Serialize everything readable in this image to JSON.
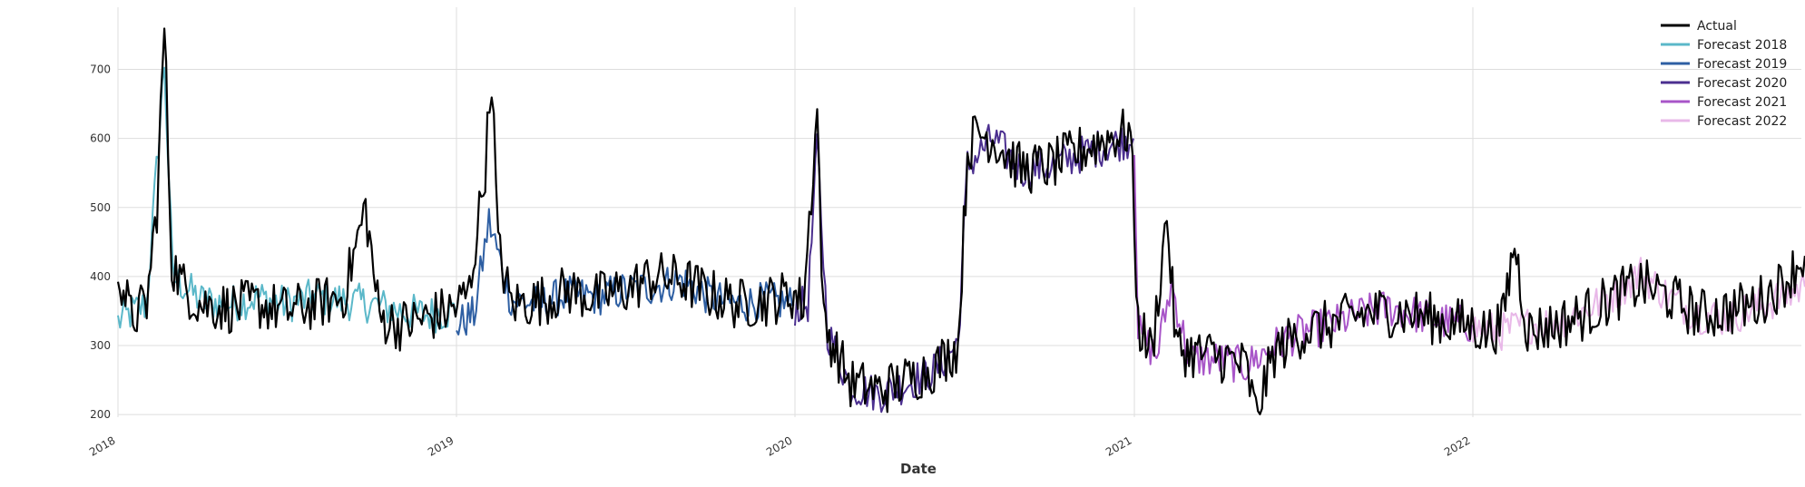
{
  "chart_data": {
    "type": "line",
    "title": "",
    "xlabel": "Date",
    "ylabel": "",
    "x_type": "date",
    "xlim": [
      "2018-01-01",
      "2022-12-31"
    ],
    "ylim": [
      170,
      790
    ],
    "yticks": [
      200,
      300,
      400,
      500,
      600,
      700
    ],
    "xticks": [
      {
        "date": "2018-01-01",
        "label": "2018"
      },
      {
        "date": "2019-01-01",
        "label": "2019"
      },
      {
        "date": "2020-01-01",
        "label": "2020"
      },
      {
        "date": "2021-01-01",
        "label": "2021"
      },
      {
        "date": "2022-01-01",
        "label": "2022"
      }
    ],
    "grid": true,
    "legend_position": "top-right",
    "series": [
      {
        "name": "Actual",
        "color": "#000000",
        "points": [
          [
            "2018-01-01",
            415
          ],
          [
            "2018-01-15",
            340
          ],
          [
            "2018-02-01",
            360
          ],
          [
            "2018-02-12",
            500
          ],
          [
            "2018-02-20",
            765
          ],
          [
            "2018-02-28",
            420
          ],
          [
            "2018-03-15",
            380
          ],
          [
            "2018-04-01",
            360
          ],
          [
            "2018-05-01",
            355
          ],
          [
            "2018-06-01",
            360
          ],
          [
            "2018-07-01",
            350
          ],
          [
            "2018-08-01",
            360
          ],
          [
            "2018-09-01",
            370
          ],
          [
            "2018-09-25",
            500
          ],
          [
            "2018-10-10",
            340
          ],
          [
            "2018-11-01",
            330
          ],
          [
            "2018-12-01",
            340
          ],
          [
            "2018-12-31",
            355
          ],
          [
            "2019-01-15",
            380
          ],
          [
            "2019-02-01",
            560
          ],
          [
            "2019-02-08",
            695
          ],
          [
            "2019-02-15",
            440
          ],
          [
            "2019-03-01",
            360
          ],
          [
            "2019-04-01",
            365
          ],
          [
            "2019-05-01",
            380
          ],
          [
            "2019-06-01",
            370
          ],
          [
            "2019-07-01",
            380
          ],
          [
            "2019-08-01",
            400
          ],
          [
            "2019-09-01",
            395
          ],
          [
            "2019-10-01",
            375
          ],
          [
            "2019-11-01",
            360
          ],
          [
            "2019-12-01",
            365
          ],
          [
            "2019-12-31",
            375
          ],
          [
            "2020-01-10",
            360
          ],
          [
            "2020-01-25",
            640
          ],
          [
            "2020-02-01",
            330
          ],
          [
            "2020-02-15",
            290
          ],
          [
            "2020-03-01",
            245
          ],
          [
            "2020-04-01",
            235
          ],
          [
            "2020-05-01",
            250
          ],
          [
            "2020-06-01",
            270
          ],
          [
            "2020-06-25",
            300
          ],
          [
            "2020-07-05",
            580
          ],
          [
            "2020-07-15",
            610
          ],
          [
            "2020-08-01",
            600
          ],
          [
            "2020-09-01",
            555
          ],
          [
            "2020-10-01",
            560
          ],
          [
            "2020-11-01",
            580
          ],
          [
            "2020-12-01",
            600
          ],
          [
            "2020-12-28",
            610
          ],
          [
            "2021-01-05",
            330
          ],
          [
            "2021-01-20",
            290
          ],
          [
            "2021-02-05",
            490
          ],
          [
            "2021-02-15",
            300
          ],
          [
            "2021-03-01",
            290
          ],
          [
            "2021-04-01",
            285
          ],
          [
            "2021-05-01",
            270
          ],
          [
            "2021-05-12",
            200
          ],
          [
            "2021-06-01",
            290
          ],
          [
            "2021-07-01",
            320
          ],
          [
            "2021-08-01",
            330
          ],
          [
            "2021-09-01",
            345
          ],
          [
            "2021-10-01",
            350
          ],
          [
            "2021-11-01",
            345
          ],
          [
            "2021-12-01",
            335
          ],
          [
            "2021-12-31",
            330
          ],
          [
            "2022-01-15",
            320
          ],
          [
            "2022-02-01",
            330
          ],
          [
            "2022-02-15",
            450
          ],
          [
            "2022-03-01",
            320
          ],
          [
            "2022-04-01",
            330
          ],
          [
            "2022-05-01",
            345
          ],
          [
            "2022-06-01",
            370
          ],
          [
            "2022-07-01",
            390
          ],
          [
            "2022-08-01",
            370
          ],
          [
            "2022-09-01",
            345
          ],
          [
            "2022-10-01",
            350
          ],
          [
            "2022-11-01",
            360
          ],
          [
            "2022-12-01",
            390
          ],
          [
            "2022-12-25",
            430
          ]
        ]
      },
      {
        "name": "Forecast 2018",
        "color": "#5bb8c9",
        "points": [
          [
            "2018-01-01",
            335
          ],
          [
            "2018-02-01",
            360
          ],
          [
            "2018-02-20",
            710
          ],
          [
            "2018-03-01",
            400
          ],
          [
            "2018-04-01",
            365
          ],
          [
            "2018-05-01",
            360
          ],
          [
            "2018-06-01",
            370
          ],
          [
            "2018-07-01",
            360
          ],
          [
            "2018-08-01",
            370
          ],
          [
            "2018-09-01",
            365
          ],
          [
            "2018-10-01",
            360
          ],
          [
            "2018-11-01",
            350
          ],
          [
            "2018-12-01",
            345
          ],
          [
            "2018-12-31",
            350
          ]
        ]
      },
      {
        "name": "Forecast 2019",
        "color": "#2e5fa3",
        "points": [
          [
            "2019-01-01",
            330
          ],
          [
            "2019-01-20",
            345
          ],
          [
            "2019-02-05",
            480
          ],
          [
            "2019-03-01",
            365
          ],
          [
            "2019-04-01",
            360
          ],
          [
            "2019-05-01",
            375
          ],
          [
            "2019-06-01",
            370
          ],
          [
            "2019-07-01",
            380
          ],
          [
            "2019-08-01",
            385
          ],
          [
            "2019-09-01",
            395
          ],
          [
            "2019-10-01",
            370
          ],
          [
            "2019-11-01",
            360
          ],
          [
            "2019-12-01",
            365
          ],
          [
            "2019-12-31",
            360
          ]
        ]
      },
      {
        "name": "Forecast 2020",
        "color": "#4b2f8f",
        "points": [
          [
            "2020-01-01",
            355
          ],
          [
            "2020-01-15",
            360
          ],
          [
            "2020-01-25",
            590
          ],
          [
            "2020-02-05",
            320
          ],
          [
            "2020-03-01",
            240
          ],
          [
            "2020-04-01",
            230
          ],
          [
            "2020-05-01",
            245
          ],
          [
            "2020-06-01",
            265
          ],
          [
            "2020-06-25",
            305
          ],
          [
            "2020-07-05",
            560
          ],
          [
            "2020-08-01",
            600
          ],
          [
            "2020-09-01",
            555
          ],
          [
            "2020-10-01",
            560
          ],
          [
            "2020-11-01",
            575
          ],
          [
            "2020-12-01",
            590
          ],
          [
            "2020-12-31",
            600
          ]
        ]
      },
      {
        "name": "Forecast 2021",
        "color": "#a855c8",
        "points": [
          [
            "2021-01-01",
            600
          ],
          [
            "2021-01-05",
            320
          ],
          [
            "2021-01-25",
            285
          ],
          [
            "2021-02-10",
            390
          ],
          [
            "2021-03-01",
            280
          ],
          [
            "2021-04-01",
            280
          ],
          [
            "2021-05-01",
            270
          ],
          [
            "2021-06-01",
            300
          ],
          [
            "2021-07-01",
            320
          ],
          [
            "2021-08-01",
            330
          ],
          [
            "2021-09-01",
            345
          ],
          [
            "2021-10-01",
            355
          ],
          [
            "2021-11-01",
            345
          ],
          [
            "2021-12-01",
            335
          ],
          [
            "2021-12-31",
            330
          ]
        ]
      },
      {
        "name": "Forecast 2022",
        "color": "#e8b8e8",
        "points": [
          [
            "2022-01-01",
            325
          ],
          [
            "2022-02-01",
            320
          ],
          [
            "2022-03-01",
            330
          ],
          [
            "2022-04-01",
            335
          ],
          [
            "2022-05-01",
            350
          ],
          [
            "2022-06-01",
            375
          ],
          [
            "2022-07-01",
            405
          ],
          [
            "2022-08-01",
            370
          ],
          [
            "2022-09-01",
            345
          ],
          [
            "2022-10-01",
            340
          ],
          [
            "2022-11-01",
            355
          ],
          [
            "2022-12-01",
            370
          ],
          [
            "2022-12-25",
            385
          ]
        ]
      }
    ]
  }
}
